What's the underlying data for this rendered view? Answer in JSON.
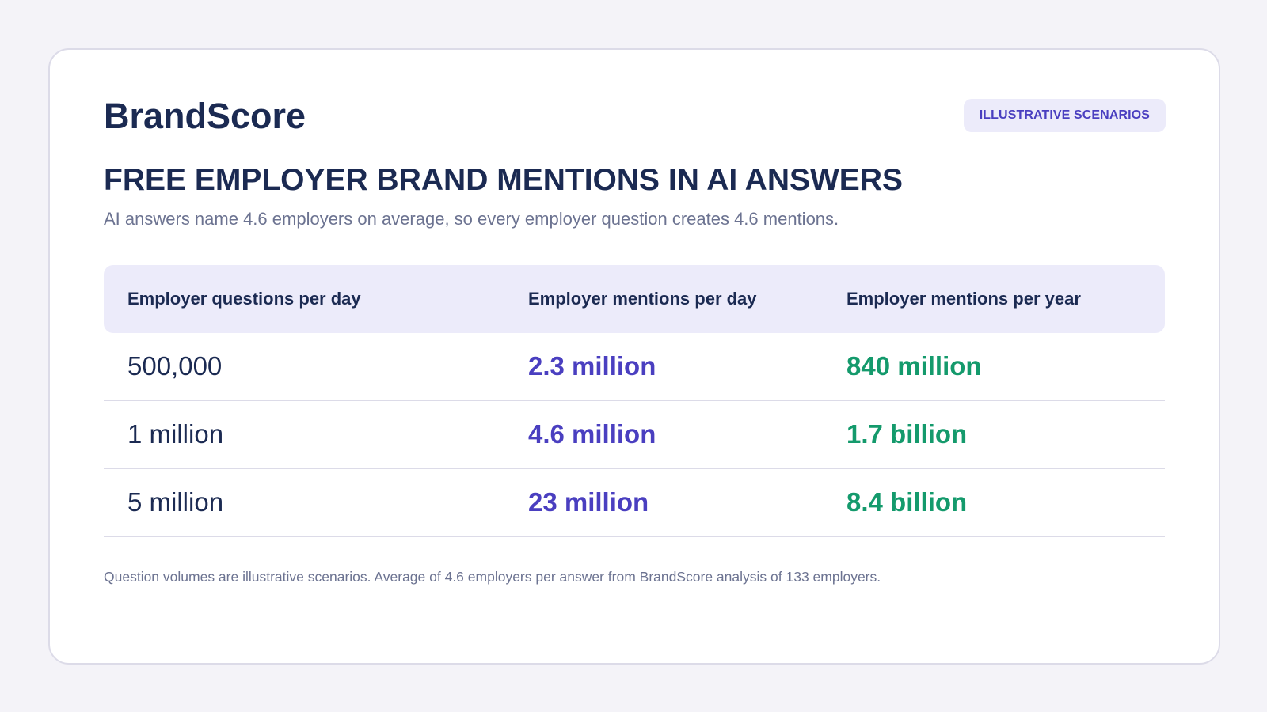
{
  "header": {
    "brand": "BrandScore",
    "badge": "ILLUSTRATIVE SCENARIOS"
  },
  "main": {
    "title": "FREE EMPLOYER BRAND MENTIONS IN AI ANSWERS",
    "subtitle": "AI answers name 4.6 employers on average, so every employer question creates 4.6 mentions."
  },
  "table": {
    "columns": [
      "Employer questions per day",
      "Employer mentions per day",
      "Employer mentions per year"
    ],
    "rows": [
      [
        "500,000",
        "2.3 million",
        "840 million"
      ],
      [
        "1 million",
        "4.6 million",
        "1.7 billion"
      ],
      [
        "5 million",
        "23 million",
        "8.4 billion"
      ]
    ]
  },
  "footnote": "Question volumes are illustrative scenarios. Average of 4.6 employers per answer from BrandScore analysis of 133 employers.",
  "colors": {
    "primary_text": "#1b2a52",
    "accent_purple": "#4a3fc0",
    "accent_green": "#149a6c",
    "muted_text": "#6c7391"
  }
}
